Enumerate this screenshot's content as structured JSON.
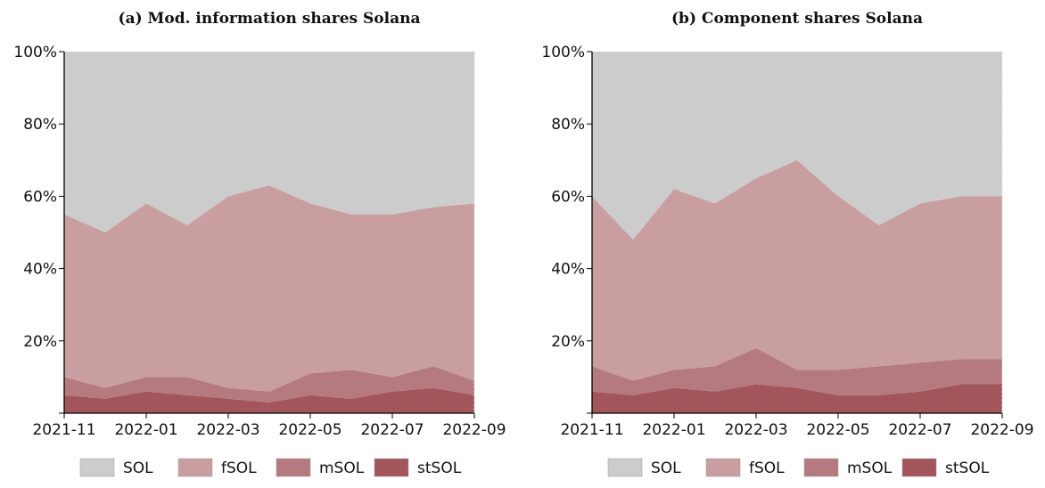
{
  "chart_data": [
    {
      "type": "stacked-area",
      "title": "(a) Mod. information shares Solana",
      "x": [
        "2021-11",
        "2021-12",
        "2022-01",
        "2022-02",
        "2022-03",
        "2022-04",
        "2022-05",
        "2022-06",
        "2022-07",
        "2022-08",
        "2022-09"
      ],
      "xticks": [
        "2021-11",
        "2022-01",
        "2022-03",
        "2022-05",
        "2022-07",
        "2022-09"
      ],
      "ylim": [
        0,
        100
      ],
      "yticks": [
        {
          "value": 20,
          "label": "20%"
        },
        {
          "value": 40,
          "label": "40%"
        },
        {
          "value": 60,
          "label": "60%"
        },
        {
          "value": 80,
          "label": "80%"
        },
        {
          "value": 100,
          "label": "100%"
        }
      ],
      "legend": "bottom",
      "series": [
        {
          "name": "SOL",
          "color": "#cccccc",
          "values": [
            45,
            50,
            42,
            48,
            40,
            37,
            42,
            45,
            45,
            43,
            42
          ]
        },
        {
          "name": "fSOL",
          "color": "#c89ea1",
          "values": [
            45,
            43,
            48,
            42,
            53,
            57,
            47,
            43,
            45,
            44,
            49
          ]
        },
        {
          "name": "mSOL",
          "color": "#b57a7f",
          "values": [
            5,
            3,
            4,
            5,
            3,
            3,
            6,
            8,
            4,
            6,
            4
          ]
        },
        {
          "name": "stSOL",
          "color": "#a3555c",
          "values": [
            5,
            4,
            6,
            5,
            4,
            3,
            5,
            4,
            6,
            7,
            5
          ]
        }
      ]
    },
    {
      "type": "stacked-area",
      "title": "(b) Component shares Solana",
      "x": [
        "2021-11",
        "2021-12",
        "2022-01",
        "2022-02",
        "2022-03",
        "2022-04",
        "2022-05",
        "2022-06",
        "2022-07",
        "2022-08",
        "2022-09"
      ],
      "xticks": [
        "2021-11",
        "2022-01",
        "2022-03",
        "2022-05",
        "2022-07",
        "2022-09"
      ],
      "ylim": [
        0,
        100
      ],
      "yticks": [
        {
          "value": 20,
          "label": "20%"
        },
        {
          "value": 40,
          "label": "40%"
        },
        {
          "value": 60,
          "label": "60%"
        },
        {
          "value": 80,
          "label": "80%"
        },
        {
          "value": 100,
          "label": "100%"
        }
      ],
      "legend": "bottom",
      "series": [
        {
          "name": "SOL",
          "color": "#cccccc",
          "values": [
            40,
            52,
            38,
            42,
            35,
            30,
            40,
            48,
            42,
            40,
            40
          ]
        },
        {
          "name": "fSOL",
          "color": "#c89ea1",
          "values": [
            47,
            39,
            50,
            45,
            47,
            58,
            48,
            39,
            44,
            45,
            45
          ]
        },
        {
          "name": "mSOL",
          "color": "#b57a7f",
          "values": [
            7,
            4,
            5,
            7,
            10,
            5,
            7,
            8,
            8,
            7,
            7
          ]
        },
        {
          "name": "stSOL",
          "color": "#a3555c",
          "values": [
            6,
            5,
            7,
            6,
            8,
            7,
            5,
            5,
            6,
            8,
            8
          ]
        }
      ]
    }
  ]
}
